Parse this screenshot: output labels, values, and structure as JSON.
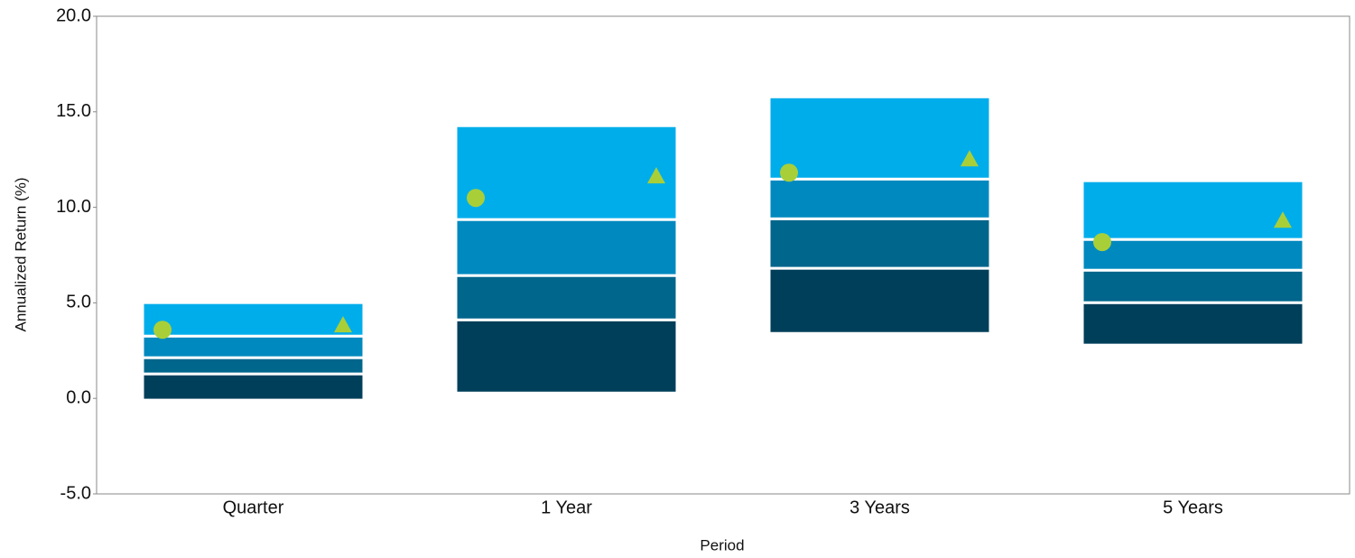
{
  "chart_data": {
    "type": "range",
    "x_label": "Period",
    "y_label": "Annualized Return (%)",
    "categories": [
      "Quarter",
      "1 Year",
      "3 Years",
      "5 Years"
    ],
    "boxes": [
      {
        "low": -0.09,
        "q1": 1.28,
        "median": 2.13,
        "q3": 3.26,
        "high": 5.01
      },
      {
        "low": 0.28,
        "q1": 4.11,
        "median": 6.43,
        "q3": 9.36,
        "high": 14.27
      },
      {
        "low": 3.4,
        "q1": 6.81,
        "median": 9.4,
        "q3": 11.48,
        "high": 15.78
      },
      {
        "low": 2.79,
        "q1": 5.01,
        "median": 6.71,
        "q3": 8.32,
        "high": 11.39
      }
    ],
    "box_colors": [
      "#003f5a",
      "#00668b",
      "#0089bf",
      "#00adeb"
    ],
    "points": [
      {
        "marker": "circle",
        "color": "#a9cf38",
        "values": [
          3.59,
          10.49,
          11.81,
          8.18
        ]
      },
      {
        "marker": "triangle",
        "color": "#a9cf38",
        "values": [
          3.83,
          11.63,
          12.52,
          9.31
        ]
      }
    ],
    "ylim": [
      -5,
      20
    ],
    "yticks": [
      {
        "value": -5,
        "label": "-5.0"
      },
      {
        "value": 0,
        "label": "0.0"
      },
      {
        "value": 5,
        "label": "5.0"
      },
      {
        "value": 10,
        "label": "10.0"
      },
      {
        "value": 15,
        "label": "15.0"
      },
      {
        "value": 20,
        "label": "20.0"
      }
    ]
  }
}
